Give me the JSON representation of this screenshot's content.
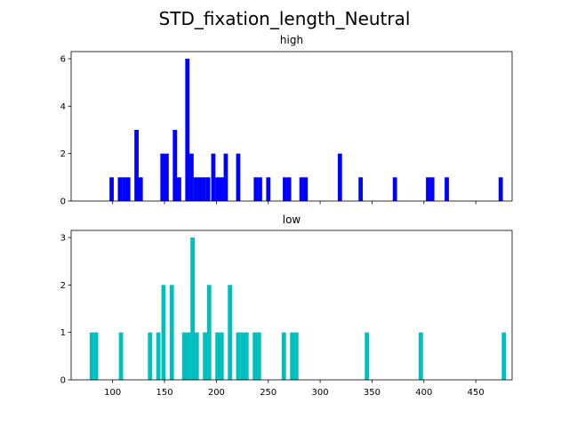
{
  "figure": {
    "suptitle": "STD_fixation_length_Neutral"
  },
  "chart_data": [
    {
      "type": "bar",
      "title": "high",
      "color": "#0000ff",
      "bin_width": 4.1,
      "xlim": [
        60,
        485
      ],
      "ylim": [
        0,
        6.3
      ],
      "yticks": [
        0,
        2,
        4,
        6
      ],
      "xticks": [
        100,
        150,
        200,
        250,
        300,
        350,
        400,
        450
      ],
      "x_tick_labels_shown": false,
      "bins": [
        {
          "x": 97,
          "y": 1
        },
        {
          "x": 105,
          "y": 1
        },
        {
          "x": 109,
          "y": 1
        },
        {
          "x": 113,
          "y": 1
        },
        {
          "x": 121,
          "y": 3
        },
        {
          "x": 125,
          "y": 1
        },
        {
          "x": 146,
          "y": 2
        },
        {
          "x": 150,
          "y": 2
        },
        {
          "x": 158,
          "y": 3
        },
        {
          "x": 162,
          "y": 1
        },
        {
          "x": 170,
          "y": 6
        },
        {
          "x": 174,
          "y": 2
        },
        {
          "x": 178,
          "y": 1
        },
        {
          "x": 182,
          "y": 1
        },
        {
          "x": 186,
          "y": 1
        },
        {
          "x": 190,
          "y": 1
        },
        {
          "x": 195,
          "y": 2
        },
        {
          "x": 199,
          "y": 1
        },
        {
          "x": 203,
          "y": 1
        },
        {
          "x": 207,
          "y": 2
        },
        {
          "x": 219,
          "y": 2
        },
        {
          "x": 236,
          "y": 1
        },
        {
          "x": 240,
          "y": 1
        },
        {
          "x": 248,
          "y": 1
        },
        {
          "x": 264,
          "y": 1
        },
        {
          "x": 268,
          "y": 1
        },
        {
          "x": 280,
          "y": 1
        },
        {
          "x": 284,
          "y": 1
        },
        {
          "x": 317,
          "y": 2
        },
        {
          "x": 337,
          "y": 1
        },
        {
          "x": 370,
          "y": 1
        },
        {
          "x": 402,
          "y": 1
        },
        {
          "x": 406,
          "y": 1
        },
        {
          "x": 420,
          "y": 1
        },
        {
          "x": 472,
          "y": 1
        }
      ]
    },
    {
      "type": "bar",
      "title": "low",
      "color": "#00bfbf",
      "bin_width": 4.1,
      "xlim": [
        60,
        485
      ],
      "ylim": [
        0,
        3.15
      ],
      "yticks": [
        0,
        1,
        2,
        3
      ],
      "xticks": [
        100,
        150,
        200,
        250,
        300,
        350,
        400,
        450
      ],
      "x_tick_labels": [
        "100",
        "150",
        "200",
        "250",
        "300",
        "350",
        "400",
        "450"
      ],
      "bins": [
        {
          "x": 78,
          "y": 1
        },
        {
          "x": 82,
          "y": 1
        },
        {
          "x": 106,
          "y": 1
        },
        {
          "x": 134,
          "y": 1
        },
        {
          "x": 142,
          "y": 1
        },
        {
          "x": 147,
          "y": 2
        },
        {
          "x": 155,
          "y": 2
        },
        {
          "x": 167,
          "y": 1
        },
        {
          "x": 171,
          "y": 1
        },
        {
          "x": 175,
          "y": 3
        },
        {
          "x": 179,
          "y": 1
        },
        {
          "x": 187,
          "y": 1
        },
        {
          "x": 191,
          "y": 2
        },
        {
          "x": 199,
          "y": 1
        },
        {
          "x": 203,
          "y": 1
        },
        {
          "x": 211,
          "y": 2
        },
        {
          "x": 219,
          "y": 1
        },
        {
          "x": 223,
          "y": 1
        },
        {
          "x": 227,
          "y": 1
        },
        {
          "x": 235,
          "y": 1
        },
        {
          "x": 239,
          "y": 1
        },
        {
          "x": 263,
          "y": 1
        },
        {
          "x": 271,
          "y": 1
        },
        {
          "x": 275,
          "y": 1
        },
        {
          "x": 343,
          "y": 1
        },
        {
          "x": 395,
          "y": 1
        },
        {
          "x": 475,
          "y": 1
        }
      ]
    }
  ]
}
